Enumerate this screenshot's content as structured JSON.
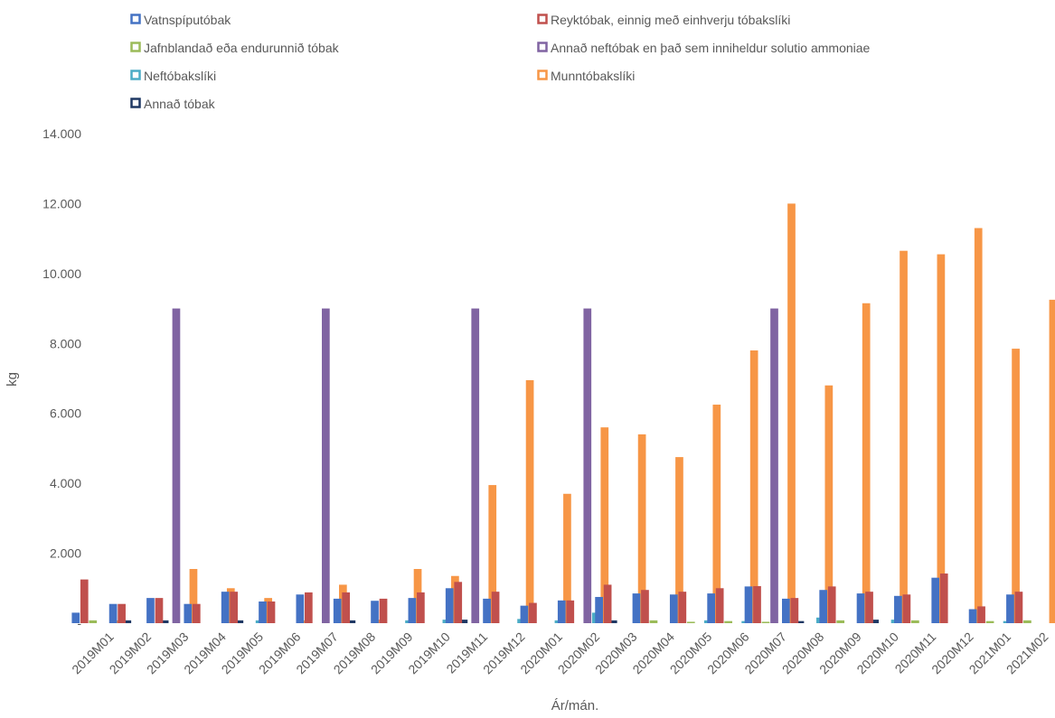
{
  "chart_data": {
    "type": "bar",
    "title": "",
    "xlabel": "Ár/mán.",
    "ylabel": "kg",
    "ylim": [
      0,
      14000
    ],
    "yticks": [
      0,
      2000,
      4000,
      6000,
      8000,
      10000,
      12000,
      14000
    ],
    "ytick_labels": [
      "-",
      "2.000",
      "4.000",
      "6.000",
      "8.000",
      "10.000",
      "12.000",
      "14.000"
    ],
    "grid": false,
    "legend_position": "top",
    "categories": [
      "2019M01",
      "2019M02",
      "2019M03",
      "2019M04",
      "2019M05",
      "2019M06",
      "2019M07",
      "2019M08",
      "2019M09",
      "2019M10",
      "2019M11",
      "2019M12",
      "2020M01",
      "2020M02",
      "2020M03",
      "2020M04",
      "2020M05",
      "2020M06",
      "2020M07",
      "2020M08",
      "2020M09",
      "2020M10",
      "2020M11",
      "2020M12",
      "2021M01",
      "2021M02"
    ],
    "series": [
      {
        "name": "Vatnspíputóbak",
        "color": "#4472C4",
        "values": [
          300,
          550,
          720,
          550,
          900,
          620,
          820,
          700,
          640,
          720,
          1000,
          700,
          500,
          650,
          750,
          850,
          820,
          850,
          1050,
          700,
          950,
          850,
          780,
          1300,
          400,
          820
        ]
      },
      {
        "name": "Reyktóbak, einnig með einhverju tóbakslíki",
        "color": "#C0504D",
        "values": [
          1250,
          550,
          720,
          550,
          900,
          620,
          880,
          880,
          700,
          880,
          1180,
          900,
          580,
          650,
          1100,
          950,
          900,
          1000,
          1060,
          720,
          1050,
          900,
          820,
          1420,
          480,
          900
        ]
      },
      {
        "name": "Jafnblandað eða endurunnið tóbak",
        "color": "#9BBB59",
        "values": [
          80,
          0,
          0,
          0,
          0,
          0,
          0,
          0,
          0,
          0,
          0,
          0,
          0,
          0,
          0,
          80,
          40,
          60,
          40,
          0,
          80,
          0,
          80,
          0,
          60,
          80
        ]
      },
      {
        "name": "Annað neftóbak en það sem inniheldur solutio ammoniae",
        "color": "#8064A2",
        "values": [
          0,
          0,
          9000,
          0,
          0,
          0,
          9000,
          0,
          0,
          0,
          9000,
          0,
          0,
          9000,
          0,
          0,
          0,
          0,
          9000,
          0,
          0,
          0,
          0,
          0,
          0,
          0
        ]
      },
      {
        "name": "Neftóbakslíki",
        "color": "#4BACC6",
        "values": [
          0,
          0,
          0,
          0,
          80,
          0,
          0,
          0,
          80,
          100,
          0,
          120,
          80,
          300,
          0,
          0,
          80,
          60,
          0,
          160,
          0,
          100,
          0,
          0,
          60,
          0
        ]
      },
      {
        "name": "Munntóbakslíki",
        "color": "#F79646",
        "values": [
          80,
          0,
          1550,
          1000,
          720,
          80,
          1100,
          100,
          1550,
          1350,
          3950,
          6950,
          3700,
          5600,
          5400,
          4750,
          6250,
          7800,
          12000,
          6800,
          9150,
          10650,
          10550,
          11300,
          7850,
          9250
        ]
      },
      {
        "name": "Annað tóbak",
        "color": "#1F3864",
        "values": [
          80,
          80,
          0,
          80,
          0,
          0,
          80,
          0,
          0,
          100,
          0,
          0,
          0,
          80,
          0,
          0,
          0,
          0,
          60,
          0,
          100,
          0,
          0,
          0,
          0,
          0
        ]
      }
    ]
  }
}
